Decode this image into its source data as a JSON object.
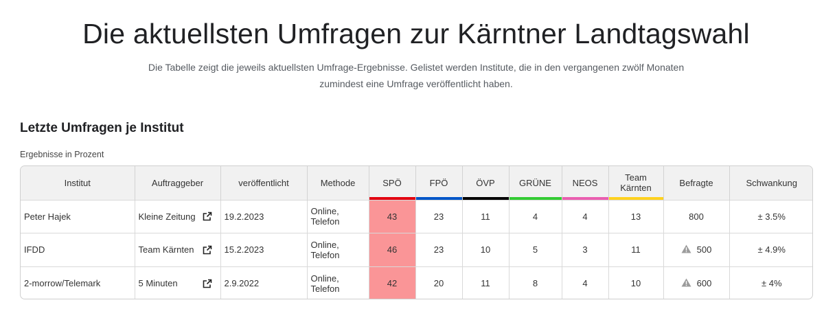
{
  "page": {
    "title": "Die aktuellsten Umfragen zur Kärntner Landtagswahl",
    "subtitle_line1": "Die Tabelle zeigt die jeweils aktuellsten Umfrage-Ergebnisse. Gelistet werden Institute, die in den vergangenen zwölf Monaten",
    "subtitle_line2": "zumindest eine Umfrage veröffentlicht haben."
  },
  "section": {
    "title": "Letzte Umfragen je Institut",
    "units": "Ergebnisse in Prozent"
  },
  "table": {
    "headers": {
      "institut": "Institut",
      "auftraggeber": "Auftraggeber",
      "veroeffentlicht": "veröffentlicht",
      "methode": "Methode",
      "spoe": "SPÖ",
      "fpoe": "FPÖ",
      "oevp": "ÖVP",
      "gruene": "GRÜNE",
      "neos": "NEOS",
      "team_line1": "Team",
      "team_line2": "Kärnten",
      "befragte": "Befragte",
      "schwankung": "Schwankung"
    },
    "party_colors": {
      "spoe": "#e3000f",
      "fpoe": "#0056c8",
      "oevp": "#000000",
      "gruene": "#33cc33",
      "neos": "#ea5eb0",
      "team": "#ffd21f"
    },
    "highlight_color": "#fa9597",
    "rows": [
      {
        "institut": "Peter Hajek",
        "auftraggeber": "Kleine Zeitung",
        "veroeffentlicht": "19.2.2023",
        "methode_line1": "Online,",
        "methode_line2": "Telefon",
        "spoe": "43",
        "fpoe": "23",
        "oevp": "11",
        "gruene": "4",
        "neos": "4",
        "team": "13",
        "befragte": "800",
        "warning": false,
        "schwankung": "± 3.5%"
      },
      {
        "institut": "IFDD",
        "auftraggeber": "Team Kärnten",
        "veroeffentlicht": "15.2.2023",
        "methode_line1": "Online,",
        "methode_line2": "Telefon",
        "spoe": "46",
        "fpoe": "23",
        "oevp": "10",
        "gruene": "5",
        "neos": "3",
        "team": "11",
        "befragte": "500",
        "warning": true,
        "schwankung": "± 4.9%"
      },
      {
        "institut": "2-morrow/Telemark",
        "auftraggeber": "5 Minuten",
        "veroeffentlicht": "2.9.2022",
        "methode_line1": "Online,",
        "methode_line2": "Telefon",
        "spoe": "42",
        "fpoe": "20",
        "oevp": "11",
        "gruene": "8",
        "neos": "4",
        "team": "10",
        "befragte": "600",
        "warning": true,
        "schwankung": "± 4%"
      }
    ],
    "icons": {
      "external_link": "external-link-icon",
      "warning": "warning-icon"
    }
  }
}
